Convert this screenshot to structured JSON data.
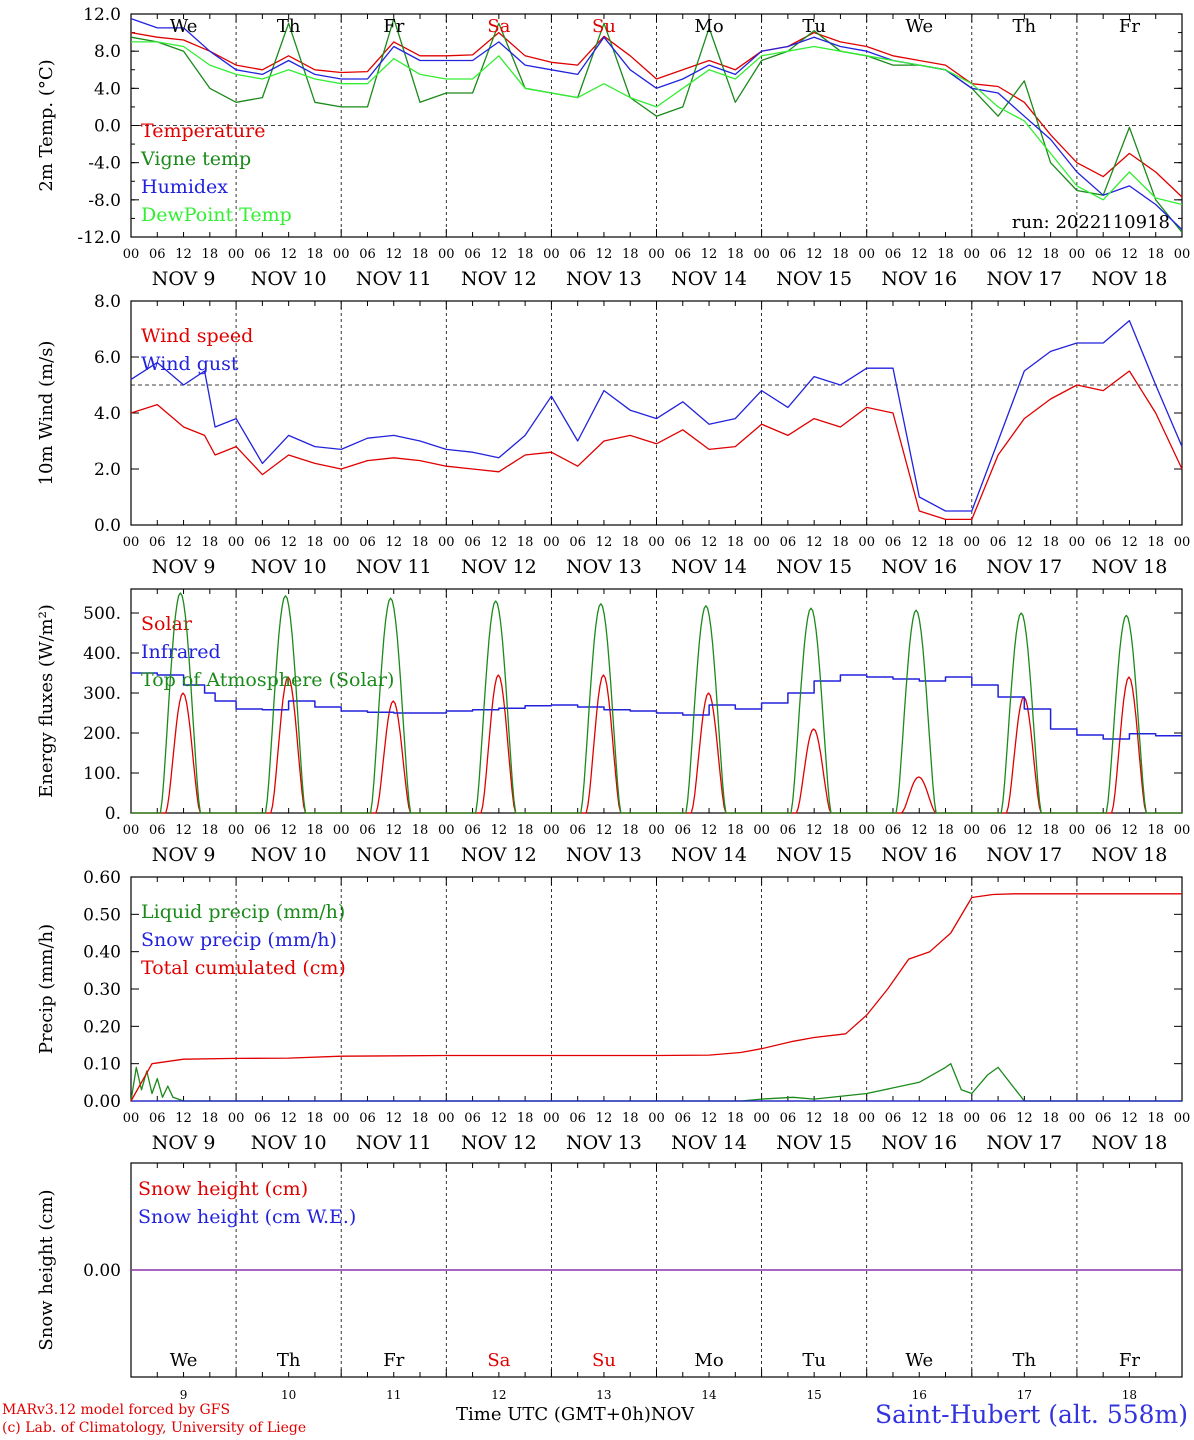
{
  "footer": {
    "credit_line1": "MARv3.12 model forced by GFS",
    "credit_line2": "(c) Lab. of Climatology, University of Liege",
    "time_axis_label": "Time UTC (GMT+0h)",
    "time_axis_month": "NOV",
    "station": "Saint-Hubert (alt. 558m)"
  },
  "colors": {
    "red": "#e00000",
    "green": "#1a8a1a",
    "blue": "#2222dd",
    "light_green": "#33ee33",
    "purple": "#8833aa"
  },
  "weekdays": [
    "We",
    "Th",
    "Fr",
    "Sa",
    "Su",
    "Mo",
    "Tu",
    "We",
    "Th",
    "Fr"
  ],
  "weekend_weekdays": [
    3,
    4
  ],
  "day_numbers": [
    "9",
    "10",
    "11",
    "12",
    "13",
    "14",
    "15",
    "16",
    "17",
    "18"
  ],
  "date_labels": [
    "NOV  9",
    "NOV 10",
    "NOV 11",
    "NOV 12",
    "NOV 13",
    "NOV 14",
    "NOV 15",
    "NOV 16",
    "NOV 17",
    "NOV 18"
  ],
  "hour_ticks": [
    "00",
    "06",
    "12",
    "18"
  ],
  "hour_tick_end": "00",
  "chart_data": [
    {
      "type": "line",
      "ylabel": "2m Temp. (°C)",
      "ylim": [
        -12,
        12
      ],
      "yticks": [
        "12.0",
        "8.0",
        "4.0",
        "0.0",
        "-4.0",
        "-8.0",
        "-12.0"
      ],
      "ytick_values": [
        12,
        8,
        4,
        0,
        -4,
        -8,
        -12
      ],
      "xlim_days": [
        0,
        10
      ],
      "dashed_reference": 0,
      "annotation": "run: 2022110918",
      "series": [
        {
          "name": "Temperature",
          "color": "#e00000",
          "x": [
            0,
            0.25,
            0.5,
            0.75,
            1,
            1.25,
            1.5,
            1.75,
            2,
            2.25,
            2.5,
            2.75,
            3,
            3.25,
            3.5,
            3.75,
            4,
            4.25,
            4.5,
            4.75,
            5,
            5.25,
            5.5,
            5.75,
            6,
            6.25,
            6.5,
            6.75,
            7,
            7.25,
            7.5,
            7.75,
            8,
            8.25,
            8.5,
            8.75,
            9,
            9.25,
            9.5,
            9.75,
            10
          ],
          "y": [
            10,
            9.5,
            9.2,
            8,
            6.5,
            6,
            7.5,
            6,
            5.7,
            5.8,
            9,
            7.5,
            7.5,
            7.6,
            10,
            7.5,
            6.8,
            6.5,
            9.6,
            7.5,
            5,
            6,
            7,
            6,
            8,
            8.5,
            10,
            9,
            8.5,
            7.5,
            7,
            6.5,
            4.5,
            4.2,
            2.5,
            -1,
            -4,
            -5.5,
            -3,
            -5,
            -7.7
          ]
        },
        {
          "name": "Vigne temp",
          "color": "#1a8a1a",
          "x": [
            0,
            0.25,
            0.5,
            0.75,
            1,
            1.25,
            1.5,
            1.75,
            2,
            2.25,
            2.5,
            2.75,
            3,
            3.25,
            3.5,
            3.75,
            4,
            4.25,
            4.5,
            4.75,
            5,
            5.25,
            5.5,
            5.75,
            6,
            6.25,
            6.5,
            6.75,
            7,
            7.25,
            7.5,
            7.75,
            8,
            8.25,
            8.5,
            8.75,
            9,
            9.25,
            9.5,
            9.75,
            10
          ],
          "y": [
            9.5,
            9,
            8,
            4,
            2.5,
            3,
            11,
            2.5,
            2,
            2,
            11.5,
            2.5,
            3.5,
            3.5,
            11,
            4,
            3.5,
            3,
            11,
            3,
            1,
            2,
            10.5,
            2.5,
            7,
            8,
            10.2,
            8,
            7.5,
            6.5,
            6.5,
            6,
            4,
            1,
            4.8,
            -4,
            -7,
            -7.5,
            -0.2,
            -8,
            -11.5
          ]
        },
        {
          "name": "Humidex",
          "color": "#2222dd",
          "x": [
            0,
            0.25,
            0.5,
            0.75,
            1,
            1.25,
            1.5,
            1.75,
            2,
            2.25,
            2.5,
            2.75,
            3,
            3.25,
            3.5,
            3.75,
            4,
            4.25,
            4.5,
            4.75,
            5,
            5.25,
            5.5,
            5.75,
            6,
            6.25,
            6.5,
            6.75,
            7,
            7.25,
            7.5,
            7.75,
            8,
            8.25,
            8.5,
            8.75,
            9,
            9.25,
            9.5,
            9.75,
            10
          ],
          "y": [
            11.5,
            10.5,
            10.5,
            8,
            6,
            5.5,
            7,
            5.5,
            5,
            5,
            8.5,
            7,
            7,
            7,
            9,
            6.5,
            6,
            5.5,
            9.5,
            6,
            4,
            5,
            6.5,
            5.5,
            8,
            8.5,
            9.5,
            8.5,
            8,
            7,
            6.5,
            6,
            4,
            3.5,
            1,
            -1.5,
            -5,
            -7.5,
            -6.5,
            -8.5,
            -11.2
          ]
        },
        {
          "name": "DewPoint Temp",
          "color": "#33ee33",
          "x": [
            0,
            0.25,
            0.5,
            0.75,
            1,
            1.25,
            1.5,
            1.75,
            2,
            2.25,
            2.5,
            2.75,
            3,
            3.25,
            3.5,
            3.75,
            4,
            4.25,
            4.5,
            4.75,
            5,
            5.25,
            5.5,
            5.75,
            6,
            6.25,
            6.5,
            6.75,
            7,
            7.25,
            7.5,
            7.75,
            8,
            8.25,
            8.5,
            8.75,
            9,
            9.25,
            9.5,
            9.75,
            10
          ],
          "y": [
            9,
            9,
            8.5,
            6.5,
            5.5,
            5,
            6,
            5,
            4.5,
            4.5,
            7.2,
            5.5,
            5,
            5,
            7.5,
            4,
            3.5,
            3,
            4.5,
            3,
            2,
            4,
            6,
            5,
            7.5,
            8,
            8.5,
            8,
            7.5,
            7,
            6.5,
            6,
            4.5,
            2,
            0.5,
            -3,
            -6.5,
            -8,
            -5,
            -7.8,
            -8.5
          ]
        }
      ]
    },
    {
      "type": "line",
      "ylabel": "10m Wind (m/s)",
      "ylim": [
        0,
        8
      ],
      "yticks": [
        "8.0",
        "6.0",
        "4.0",
        "2.0",
        "0.0"
      ],
      "ytick_values": [
        8,
        6,
        4,
        2,
        0
      ],
      "xlim_days": [
        0,
        10
      ],
      "dashed_reference": 5,
      "series": [
        {
          "name": "Wind speed",
          "color": "#e00000",
          "x": [
            0,
            0.25,
            0.5,
            0.7,
            0.8,
            1,
            1.25,
            1.5,
            1.75,
            2,
            2.25,
            2.5,
            2.75,
            3,
            3.25,
            3.5,
            3.75,
            4,
            4.25,
            4.5,
            4.75,
            5,
            5.25,
            5.5,
            5.75,
            6,
            6.25,
            6.5,
            6.75,
            7,
            7.25,
            7.5,
            7.75,
            8,
            8.25,
            8.5,
            8.75,
            9,
            9.25,
            9.5,
            9.75,
            10
          ],
          "y": [
            4,
            4.3,
            3.5,
            3.2,
            2.5,
            2.8,
            1.8,
            2.5,
            2.2,
            2,
            2.3,
            2.4,
            2.3,
            2.1,
            2,
            1.9,
            2.5,
            2.6,
            2.1,
            3,
            3.2,
            2.9,
            3.4,
            2.7,
            2.8,
            3.6,
            3.2,
            3.8,
            3.5,
            4.2,
            4,
            0.5,
            0.2,
            0.2,
            2.5,
            3.8,
            4.5,
            5,
            4.8,
            5.5,
            4,
            2
          ]
        },
        {
          "name": "Wind gust",
          "color": "#2222dd",
          "x": [
            0,
            0.25,
            0.5,
            0.7,
            0.8,
            1,
            1.25,
            1.5,
            1.75,
            2,
            2.25,
            2.5,
            2.75,
            3,
            3.25,
            3.5,
            3.75,
            4,
            4.25,
            4.5,
            4.75,
            5,
            5.25,
            5.5,
            5.75,
            6,
            6.25,
            6.5,
            6.75,
            7,
            7.25,
            7.5,
            7.75,
            8,
            8.25,
            8.5,
            8.75,
            9,
            9.25,
            9.5,
            9.75,
            10
          ],
          "y": [
            5.2,
            5.8,
            5,
            5.5,
            3.5,
            3.8,
            2.2,
            3.2,
            2.8,
            2.7,
            3.1,
            3.2,
            3,
            2.7,
            2.6,
            2.4,
            3.2,
            4.6,
            3,
            4.8,
            4.1,
            3.8,
            4.4,
            3.6,
            3.8,
            4.8,
            4.2,
            5.3,
            5,
            5.6,
            5.6,
            1,
            0.5,
            0.5,
            3,
            5.5,
            6.2,
            6.5,
            6.5,
            7.3,
            5,
            2.8
          ]
        }
      ]
    },
    {
      "type": "line",
      "ylabel": "Energy fluxes (W/m²)",
      "ylim": [
        0,
        560
      ],
      "yticks": [
        "500.",
        "400.",
        "300.",
        "200.",
        "100.",
        "0."
      ],
      "ytick_values": [
        500,
        400,
        300,
        200,
        100,
        0
      ],
      "xlim_days": [
        0,
        10
      ],
      "series": [
        {
          "name": "Solar",
          "color": "#e00000",
          "x": [
            0.28,
            0.4,
            0.5,
            0.6,
            0.7,
            1.33,
            1.5,
            1.66,
            2.33,
            2.5,
            2.66,
            3.33,
            3.5,
            3.66,
            4.33,
            4.5,
            4.66,
            5.33,
            5.5,
            5.66,
            6.33,
            6.5,
            6.66,
            7.33,
            7.5,
            7.66,
            8.33,
            8.5,
            8.66,
            9.33,
            9.5,
            9.66
          ],
          "y": [
            0,
            300,
            180,
            220,
            0,
            0,
            340,
            0,
            0,
            280,
            0,
            0,
            345,
            0,
            0,
            345,
            0,
            0,
            300,
            0,
            0,
            210,
            0,
            0,
            90,
            0,
            0,
            290,
            0,
            0,
            340,
            0
          ],
          "peaks": [
            300,
            340,
            280,
            345,
            345,
            300,
            210,
            90,
            290,
            340
          ]
        },
        {
          "name": "Infrared",
          "color": "#2222dd",
          "x": [
            0,
            0.25,
            0.5,
            0.7,
            0.8,
            1,
            1.25,
            1.5,
            1.75,
            2,
            2.25,
            2.5,
            2.75,
            3,
            3.25,
            3.5,
            3.75,
            4,
            4.25,
            4.5,
            4.75,
            5,
            5.25,
            5.5,
            5.75,
            6,
            6.25,
            6.5,
            6.75,
            7,
            7.25,
            7.5,
            7.75,
            8,
            8.25,
            8.5,
            8.75,
            9,
            9.25,
            9.5,
            9.75,
            10
          ],
          "y": [
            350,
            345,
            320,
            300,
            280,
            260,
            258,
            280,
            265,
            255,
            252,
            250,
            250,
            255,
            258,
            262,
            268,
            270,
            265,
            258,
            255,
            250,
            245,
            270,
            260,
            275,
            300,
            330,
            345,
            340,
            335,
            330,
            340,
            320,
            290,
            260,
            210,
            195,
            185,
            198,
            193,
            193
          ]
        },
        {
          "name": "Top of Atmosphere (Solar)",
          "color": "#1a8a1a",
          "peaks": [
            550,
            543,
            537,
            530,
            523,
            518,
            512,
            507,
            500,
            494
          ],
          "rise_frac": 0.28,
          "set_frac": 0.66
        }
      ]
    },
    {
      "type": "line",
      "ylabel": "Precip (mm/h)",
      "ylim": [
        0,
        0.6
      ],
      "yticks": [
        "0.60",
        "0.50",
        "0.40",
        "0.30",
        "0.20",
        "0.10",
        "0.00"
      ],
      "ytick_values": [
        0.6,
        0.5,
        0.4,
        0.3,
        0.2,
        0.1,
        0
      ],
      "xlim_days": [
        0,
        10
      ],
      "series": [
        {
          "name": "Liquid precip (mm/h)",
          "color": "#1a8a1a",
          "x": [
            0,
            0.05,
            0.1,
            0.15,
            0.2,
            0.25,
            0.3,
            0.35,
            0.4,
            0.5,
            5.8,
            6,
            6.3,
            6.5,
            7,
            7.5,
            7.75,
            7.8,
            7.9,
            8,
            8.15,
            8.25,
            8.5,
            8.75,
            9,
            10
          ],
          "y": [
            0,
            0.09,
            0.03,
            0.08,
            0.02,
            0.06,
            0.01,
            0.04,
            0.01,
            0,
            0,
            0.005,
            0.01,
            0.005,
            0.02,
            0.05,
            0.09,
            0.1,
            0.03,
            0.02,
            0.07,
            0.09,
            0,
            0,
            0,
            0
          ]
        },
        {
          "name": "Snow precip (mm/h)",
          "color": "#2222dd",
          "x": [
            0,
            10
          ],
          "y": [
            0,
            0
          ]
        },
        {
          "name": "Total cumulated (cm)",
          "color": "#e00000",
          "x": [
            0,
            0.2,
            0.5,
            1,
            1.5,
            2,
            3,
            4,
            5,
            5.5,
            5.8,
            6,
            6.3,
            6.5,
            6.8,
            7,
            7.2,
            7.4,
            7.6,
            7.8,
            8,
            8.2,
            8.4,
            8.6,
            9,
            10
          ],
          "y": [
            0,
            0.1,
            0.112,
            0.114,
            0.115,
            0.12,
            0.122,
            0.122,
            0.122,
            0.123,
            0.13,
            0.14,
            0.16,
            0.17,
            0.18,
            0.23,
            0.3,
            0.38,
            0.4,
            0.45,
            0.545,
            0.553,
            0.555,
            0.555,
            0.555,
            0.555
          ]
        }
      ]
    },
    {
      "type": "line",
      "ylabel": "Snow height (cm)",
      "ylim": [
        -1,
        1
      ],
      "yticks": [
        "0.00"
      ],
      "ytick_values": [
        0
      ],
      "xlim_days": [
        0,
        10
      ],
      "series": [
        {
          "name": "Snow height (cm)",
          "color": "#e00000",
          "x": [
            0,
            10
          ],
          "y": [
            0,
            0
          ]
        },
        {
          "name": "Snow height (cm W.E.)",
          "color": "#2222dd",
          "x": [
            0,
            10
          ],
          "y": [
            0,
            0
          ]
        }
      ]
    }
  ]
}
